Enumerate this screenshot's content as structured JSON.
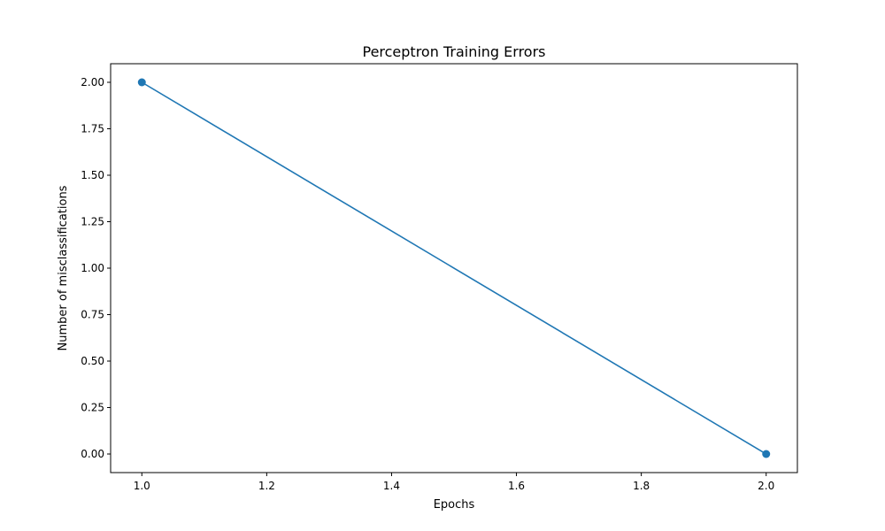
{
  "chart_data": {
    "type": "line",
    "title": "Perceptron Training Errors",
    "xlabel": "Epochs",
    "ylabel": "Number of misclassifications",
    "x": [
      1,
      2
    ],
    "series": [
      {
        "values": [
          2,
          0
        ]
      }
    ],
    "xlim": [
      0.95,
      2.05
    ],
    "ylim": [
      -0.1,
      2.1
    ],
    "xticks": [
      1.0,
      1.2,
      1.4,
      1.6,
      1.8,
      2.0
    ],
    "xtick_labels": [
      "1.0",
      "1.2",
      "1.4",
      "1.6",
      "1.8",
      "2.0"
    ],
    "yticks": [
      0.0,
      0.25,
      0.5,
      0.75,
      1.0,
      1.25,
      1.5,
      1.75,
      2.0
    ],
    "ytick_labels": [
      "0.00",
      "0.25",
      "0.50",
      "0.75",
      "1.00",
      "1.25",
      "1.50",
      "1.75",
      "2.00"
    ],
    "markers": "circle",
    "grid": false,
    "legend": false,
    "colors": {
      "line": "#1f77b4",
      "axes": "#000000",
      "background": "#ffffff"
    }
  }
}
